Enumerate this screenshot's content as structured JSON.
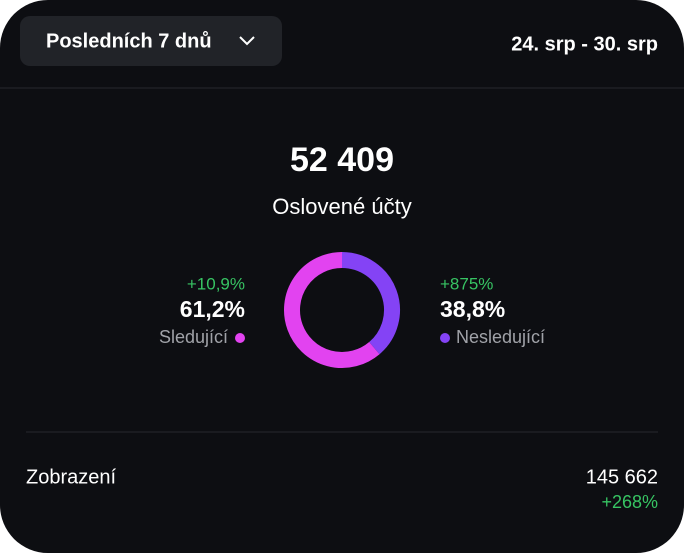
{
  "header": {
    "period_button": "Posledních 7 dnů",
    "date_range": "24. srp - 30. srp"
  },
  "summary": {
    "value": "52 409",
    "label": "Oslovené účty"
  },
  "chart_data": {
    "type": "donut",
    "categories": [
      "Sledující",
      "Nesledující"
    ],
    "values": [
      61.2,
      38.8
    ],
    "value_labels": [
      "61,2%",
      "38,8%"
    ],
    "changes": [
      "+10,9%",
      "+875%"
    ],
    "colors": [
      "#e243f0",
      "#8443f5"
    ]
  },
  "metrics": {
    "rows": [
      {
        "label": "Zobrazení",
        "value": "145 662",
        "change": "+268%"
      }
    ]
  }
}
